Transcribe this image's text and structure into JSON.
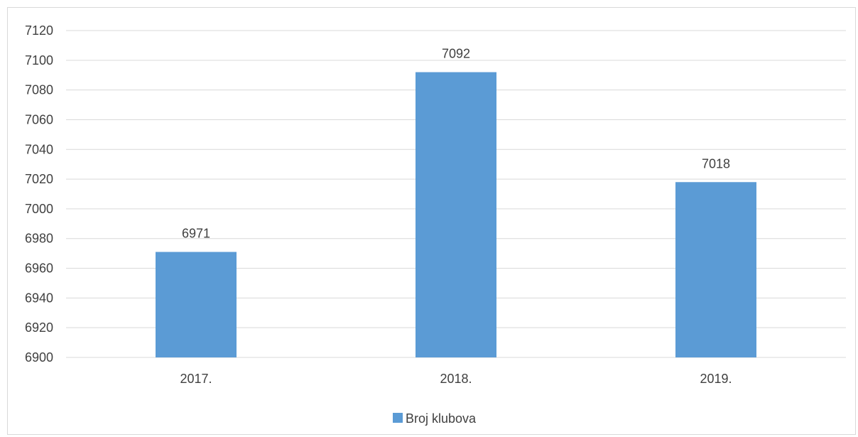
{
  "chart_data": {
    "type": "bar",
    "categories": [
      "2017.",
      "2018.",
      "2019."
    ],
    "series": [
      {
        "name": "Broj klubova",
        "values": [
          6971,
          7092,
          7018
        ],
        "color": "#5b9bd5"
      }
    ],
    "data_labels": [
      "6971",
      "7092",
      "7018"
    ],
    "ylim": [
      6900,
      7120
    ],
    "yticks": [
      6900,
      6920,
      6940,
      6960,
      6980,
      7000,
      7020,
      7040,
      7060,
      7080,
      7100,
      7120
    ],
    "ytick_labels": [
      "6900",
      "6920",
      "6940",
      "6960",
      "6980",
      "7000",
      "7020",
      "7040",
      "7060",
      "7080",
      "7100",
      "7120"
    ],
    "grid": true,
    "legend_position": "bottom",
    "title": "",
    "xlabel": "",
    "ylabel": ""
  },
  "colors": {
    "bar": "#5b9bd5",
    "gridline": "#d9d9d9",
    "text": "#404040"
  }
}
